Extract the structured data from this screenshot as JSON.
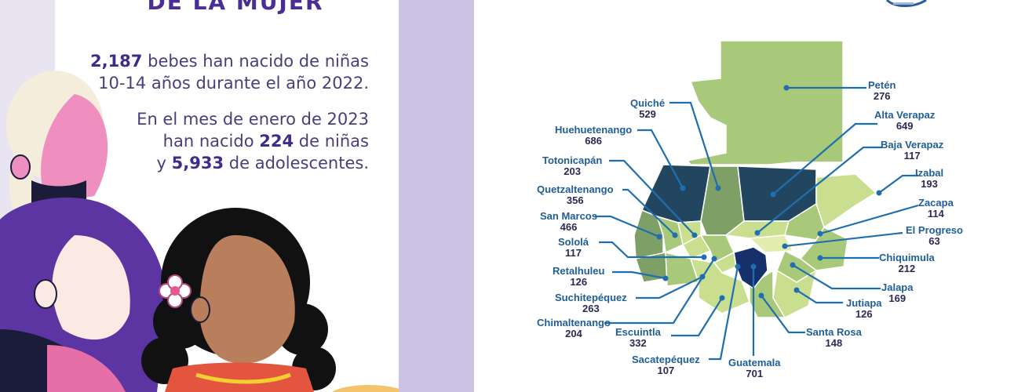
{
  "header": {
    "title_fragment": "DE LA MUJER"
  },
  "stats": {
    "births_count": "2,187",
    "births_text_1": "bebes han  nacido de niñas",
    "births_text_2": "10-14 años durante el año 2022.",
    "jan_line_1": "En el mes de enero de 2023",
    "jan_prefix": "han nacido",
    "jan_girls": "224",
    "jan_girls_suffix": "de niñas",
    "jan_y": "y",
    "jan_teens": "5,933",
    "jan_teens_suffix": "de adolescentes."
  },
  "map": {
    "departments": [
      {
        "name": "Petén",
        "value": "276"
      },
      {
        "name": "Quiché",
        "value": "529"
      },
      {
        "name": "Alta Verapaz",
        "value": "649"
      },
      {
        "name": "Huehuetenango",
        "value": "686"
      },
      {
        "name": "Baja Verapaz",
        "value": "117"
      },
      {
        "name": "Totonicapán",
        "value": "203"
      },
      {
        "name": "Izabal",
        "value": "193"
      },
      {
        "name": "Quetzaltenango",
        "value": "356"
      },
      {
        "name": "Zacapa",
        "value": "114"
      },
      {
        "name": "San Marcos",
        "value": "466"
      },
      {
        "name": "El Progreso",
        "value": "63"
      },
      {
        "name": "Sololá",
        "value": "117"
      },
      {
        "name": "Chiquimula",
        "value": "212"
      },
      {
        "name": "Retalhuleu",
        "value": "126"
      },
      {
        "name": "Jalapa",
        "value": "169"
      },
      {
        "name": "Suchitepéquez",
        "value": "263"
      },
      {
        "name": "Jutiapa",
        "value": "126"
      },
      {
        "name": "Chimaltenango",
        "value": "204"
      },
      {
        "name": "Escuintla",
        "value": "332"
      },
      {
        "name": "Santa Rosa",
        "value": "148"
      },
      {
        "name": "Sacatepéquez",
        "value": "107"
      },
      {
        "name": "Guatemala",
        "value": "701"
      }
    ]
  },
  "colors": {
    "accent_purple": "#4a2d95",
    "map_light": "#c9df8f",
    "map_mid": "#8fb66c",
    "map_dark": "#234660",
    "map_darkest": "#16306b",
    "label_blue": "#1f5d96"
  }
}
